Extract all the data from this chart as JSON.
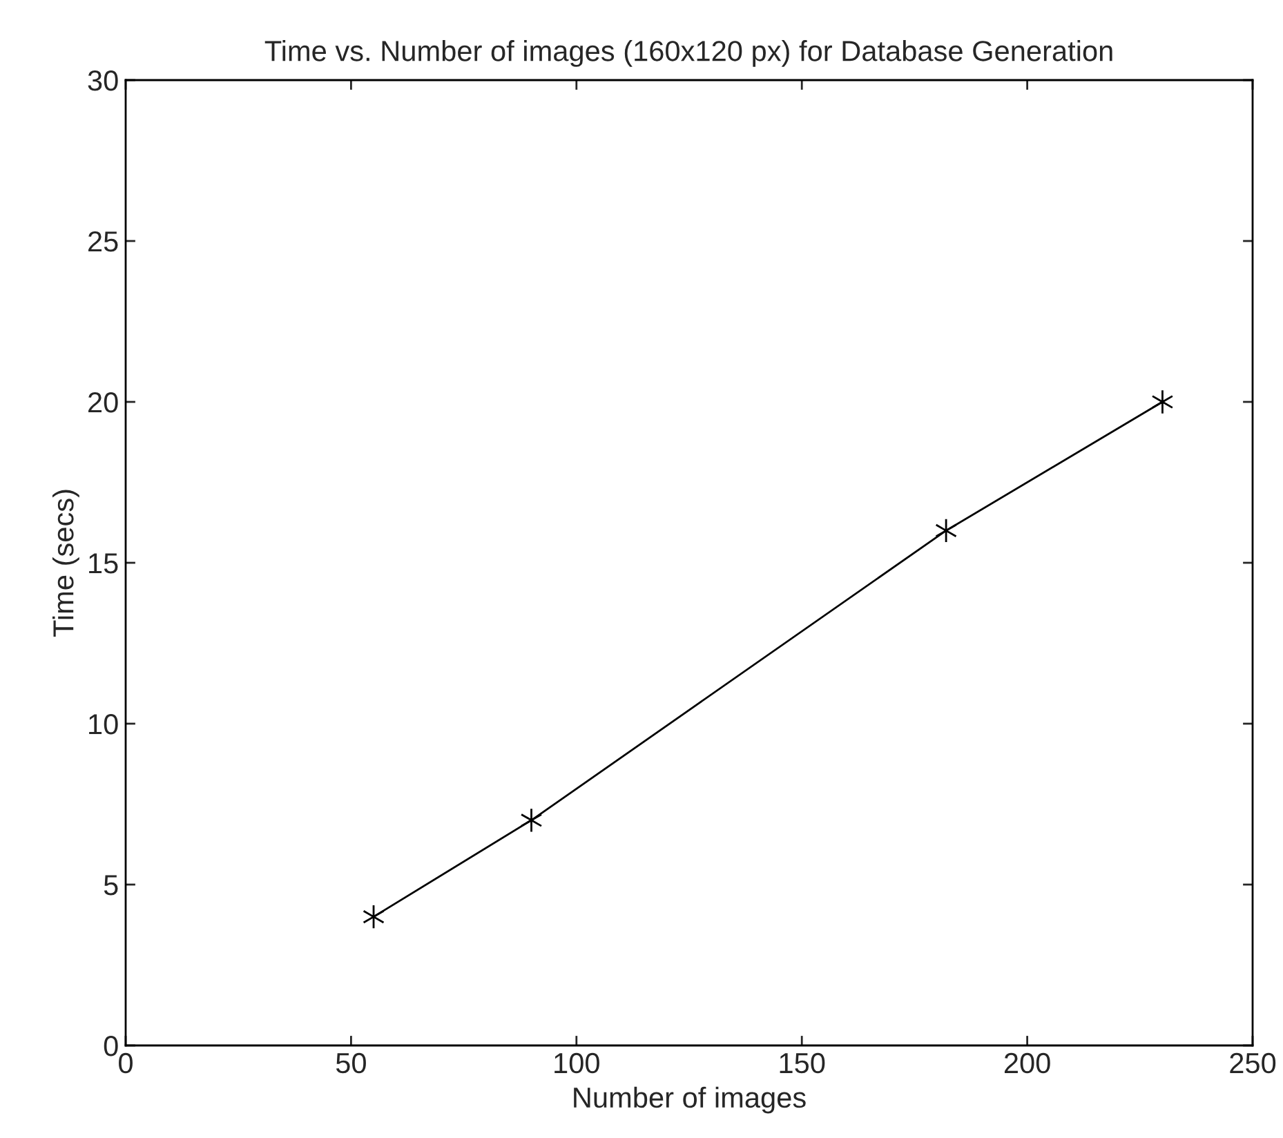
{
  "chart_data": {
    "type": "line",
    "title": "Time vs. Number of images (160x120 px) for Database Generation",
    "xlabel": "Number of images",
    "ylabel": "Time (secs)",
    "x": [
      55,
      90,
      182,
      230
    ],
    "series": [
      {
        "color": "#000000",
        "values": [
          4,
          7,
          16,
          20
        ]
      }
    ],
    "xlim": [
      0,
      250
    ],
    "xticks": [
      0,
      50,
      100,
      150,
      200,
      250
    ],
    "ylim": [
      0,
      30
    ],
    "yticks": [
      0,
      5,
      10,
      15,
      20,
      25,
      30
    ],
    "marker": "cross",
    "line_style": "solid",
    "grid": false,
    "legend": false
  }
}
